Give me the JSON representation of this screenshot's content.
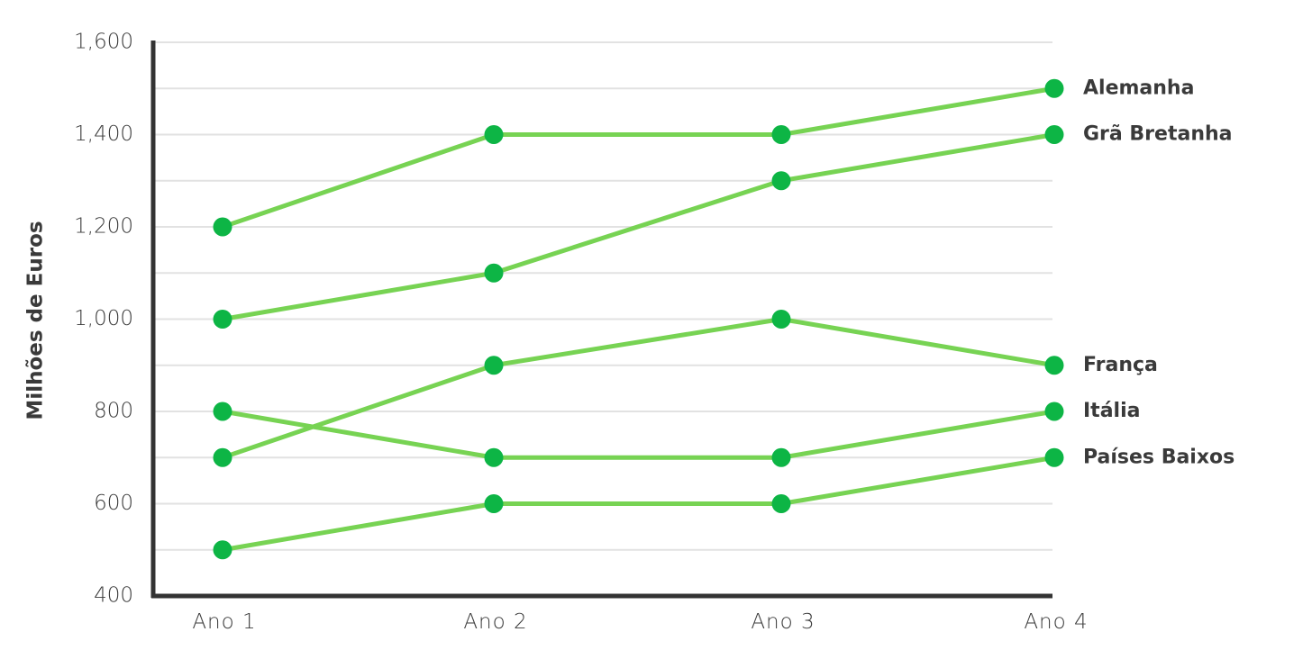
{
  "chart_data": {
    "type": "line",
    "title": "",
    "xlabel": "",
    "ylabel": "Milhões de Euros",
    "categories": [
      "Ano  1",
      "Ano  2",
      "Ano  3",
      "Ano  4"
    ],
    "ylim": [
      400,
      1600
    ],
    "yticks": [
      400,
      600,
      800,
      1000,
      1200,
      1400,
      1600
    ],
    "ytick_labels": [
      "400",
      "600",
      "800",
      "1,000",
      "1,200",
      "1,400",
      "1,600"
    ],
    "grid": true,
    "legend": "end-of-line labels",
    "colors": {
      "line": "#77d353",
      "marker": "#0db545",
      "axis": "#333333",
      "grid": "#e2e2e2"
    },
    "series": [
      {
        "name": "Alemanha",
        "values": [
          1200,
          1400,
          1400,
          1500
        ]
      },
      {
        "name": "Grã Bretanha",
        "values": [
          1000,
          1100,
          1300,
          1400
        ]
      },
      {
        "name": "França",
        "values": [
          700,
          900,
          1000,
          900
        ]
      },
      {
        "name": "Itália",
        "values": [
          800,
          700,
          700,
          800
        ]
      },
      {
        "name": "Países Baixos",
        "values": [
          500,
          600,
          600,
          700
        ]
      }
    ]
  }
}
